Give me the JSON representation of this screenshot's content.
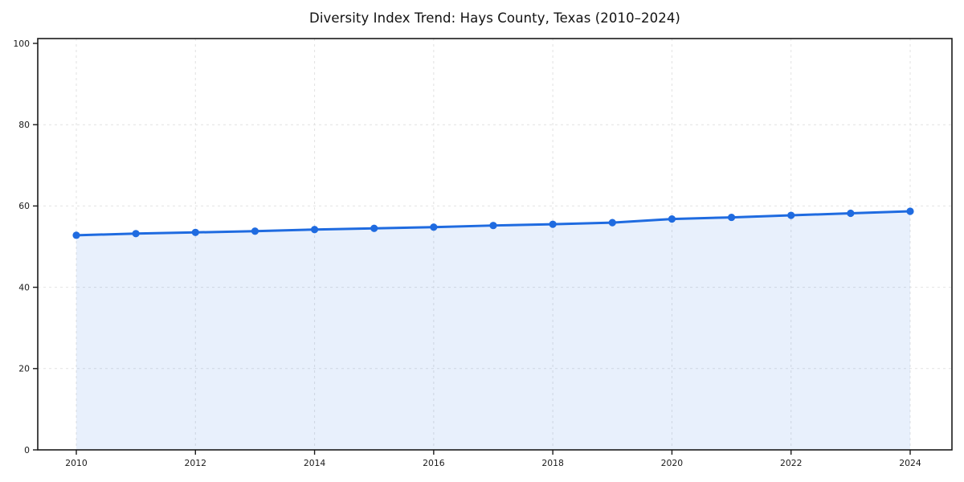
{
  "chart_data": {
    "type": "line",
    "title": "Diversity Index Trend: Hays County, Texas (2010–2024)",
    "xlabel": "",
    "ylabel": "",
    "x": [
      2010,
      2011,
      2012,
      2013,
      2014,
      2015,
      2016,
      2017,
      2018,
      2019,
      2020,
      2021,
      2022,
      2023,
      2024
    ],
    "series": [
      {
        "name": "Diversity Index",
        "values": [
          52.8,
          53.2,
          53.5,
          53.8,
          54.2,
          54.5,
          54.8,
          55.2,
          55.5,
          55.9,
          56.8,
          57.2,
          57.7,
          58.2,
          58.7
        ],
        "filled_to_zero": true,
        "markers": "circle"
      }
    ],
    "xlim": [
      2010,
      2024
    ],
    "ylim": [
      0,
      100
    ],
    "xticks": [
      2010,
      2012,
      2014,
      2016,
      2018,
      2020,
      2022,
      2024
    ],
    "yticks": [
      0,
      20,
      40,
      60,
      80,
      100
    ],
    "grid": "dashed, horizontal and vertical at labeled ticks",
    "legend": "none",
    "colors": {
      "line": "#1f6be0",
      "marker": "#1f6be0",
      "fill": "rgba(31,107,224,0.10)",
      "gridline": "#e2e2e2",
      "axis_frame": "#1a1a1a",
      "tick_text": "#1a1a1a",
      "background": "#ffffff"
    }
  }
}
